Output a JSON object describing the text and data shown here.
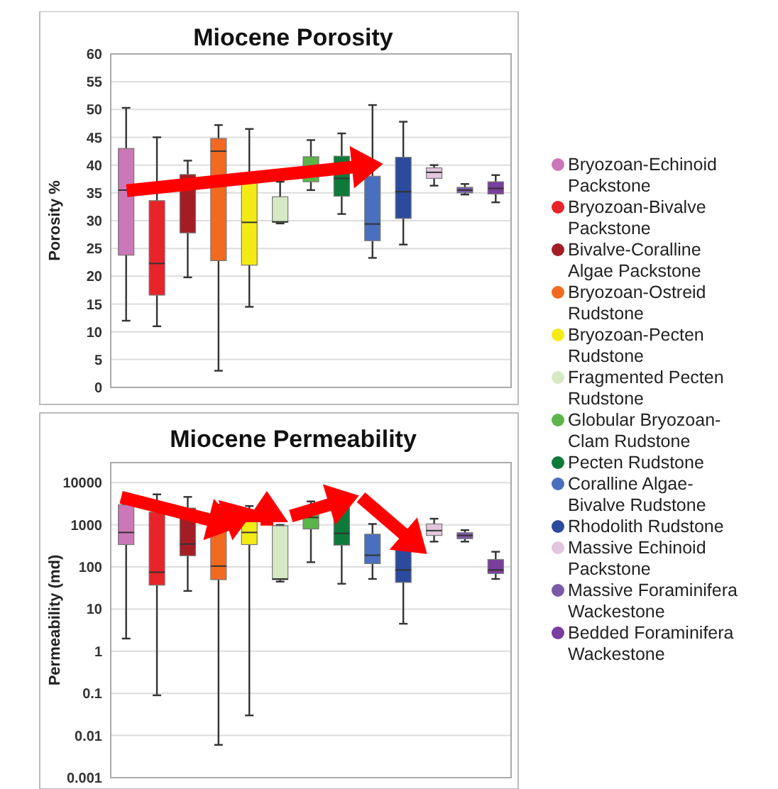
{
  "chart_data": [
    {
      "type": "box",
      "title": "Miocene Porosity",
      "ylabel": "Porosity %",
      "tick_labels": "y",
      "grid": "y",
      "legend": "right",
      "categories": [
        null,
        null,
        null,
        null,
        null,
        null,
        null,
        null,
        null,
        null,
        null,
        null,
        null
      ],
      "ylim": [
        0,
        60
      ],
      "yticks": [
        0,
        5,
        10,
        15,
        20,
        25,
        30,
        35,
        40,
        45,
        50,
        55,
        60
      ],
      "series": [
        {
          "name": "Bryozoan-Echinoid Packstone",
          "color": "#cc77b8",
          "boxes": [
            {
              "low": 12,
              "q1": 23.8,
              "median": 35.5,
              "q3": 43,
              "high": 50.3
            },
            null,
            null,
            null,
            null,
            null,
            null,
            null,
            null,
            null,
            null,
            null,
            null
          ]
        },
        {
          "name": "Bryozoan-Bivalve Packstone",
          "color": "#e8232a",
          "boxes": [
            null,
            {
              "low": 11,
              "q1": 16.6,
              "median": 22.3,
              "q3": 33.6,
              "high": 45
            },
            null,
            null,
            null,
            null,
            null,
            null,
            null,
            null,
            null,
            null,
            null
          ]
        },
        {
          "name": "Bivalve-Coralline Algae Packstone",
          "color": "#a51d24",
          "boxes": [
            null,
            null,
            {
              "low": 19.8,
              "q1": 27.8,
              "median": 36,
              "q3": 38.3,
              "high": 40.8
            },
            null,
            null,
            null,
            null,
            null,
            null,
            null,
            null,
            null,
            null
          ]
        },
        {
          "name": "Bryozoan-Ostreid Rudstone",
          "color": "#f26a21",
          "boxes": [
            null,
            null,
            null,
            {
              "low": 3,
              "q1": 22.8,
              "median": 42.5,
              "q3": 44.8,
              "high": 47.2
            },
            null,
            null,
            null,
            null,
            null,
            null,
            null,
            null,
            null
          ]
        },
        {
          "name": "Bryozoan-Pecten Rudstone",
          "color": "#f5eb14",
          "boxes": [
            null,
            null,
            null,
            null,
            {
              "low": 14.5,
              "q1": 22,
              "median": 29.7,
              "q3": 38,
              "high": 46.5
            },
            null,
            null,
            null,
            null,
            null,
            null,
            null,
            null
          ]
        },
        {
          "name": "Fragmented Pecten Rudstone",
          "color": "#d4e9c4",
          "boxes": [
            null,
            null,
            null,
            null,
            null,
            {
              "low": 29.5,
              "q1": 29.7,
              "median": 29.8,
              "q3": 34.3,
              "high": 37
            },
            null,
            null,
            null,
            null,
            null,
            null,
            null
          ]
        },
        {
          "name": "Globular Bryozoan-Clam Rudstone",
          "color": "#5bb548",
          "boxes": [
            null,
            null,
            null,
            null,
            null,
            null,
            {
              "low": 35.5,
              "q1": 37,
              "median": 39,
              "q3": 41.5,
              "high": 44.5
            },
            null,
            null,
            null,
            null,
            null,
            null
          ]
        },
        {
          "name": "Pecten Rudstone",
          "color": "#0e7a3a",
          "boxes": [
            null,
            null,
            null,
            null,
            null,
            null,
            null,
            {
              "low": 31.2,
              "q1": 34.4,
              "median": 37.6,
              "q3": 41.6,
              "high": 45.7
            },
            null,
            null,
            null,
            null,
            null
          ]
        },
        {
          "name": "Coralline Algae-Bivalve Rudstone",
          "color": "#4a6fbf",
          "boxes": [
            null,
            null,
            null,
            null,
            null,
            null,
            null,
            null,
            {
              "low": 23.3,
              "q1": 26.4,
              "median": 29.4,
              "q3": 38,
              "high": 50.8
            },
            null,
            null,
            null,
            null
          ]
        },
        {
          "name": "Rhodolith Rudstone",
          "color": "#2c4a9e",
          "boxes": [
            null,
            null,
            null,
            null,
            null,
            null,
            null,
            null,
            null,
            {
              "low": 25.7,
              "q1": 30.4,
              "median": 35.2,
              "q3": 41.4,
              "high": 47.8
            },
            null,
            null,
            null
          ]
        },
        {
          "name": "Massive Echinoid Packstone",
          "color": "#e2c6dd",
          "boxes": [
            null,
            null,
            null,
            null,
            null,
            null,
            null,
            null,
            null,
            null,
            {
              "low": 36.3,
              "q1": 37.6,
              "median": 38.7,
              "q3": 39.5,
              "high": 40
            },
            null,
            null
          ]
        },
        {
          "name": "Massive Foraminifera Wackestone",
          "color": "#7a5aa8",
          "boxes": [
            null,
            null,
            null,
            null,
            null,
            null,
            null,
            null,
            null,
            null,
            null,
            {
              "low": 34.7,
              "q1": 35,
              "median": 35.5,
              "q3": 36,
              "high": 36.6
            },
            null
          ]
        },
        {
          "name": "Bedded Foraminifera Wackestone",
          "color": "#7a3da0",
          "boxes": [
            null,
            null,
            null,
            null,
            null,
            null,
            null,
            null,
            null,
            null,
            null,
            null,
            {
              "low": 33.3,
              "q1": 34.8,
              "median": 35.8,
              "q3": 37,
              "high": 38.2
            }
          ]
        }
      ]
    },
    {
      "type": "box",
      "title": "Miocene Permeability",
      "ylabel": "Permeability (md)",
      "tick_labels": "y",
      "grid": "y",
      "log": true,
      "categories": [
        null,
        null,
        null,
        null,
        null,
        null,
        null,
        null,
        null,
        null,
        null,
        null,
        null
      ],
      "ylim": [
        0.001,
        30000
      ],
      "yticks": [
        0.001,
        0.01,
        0.1,
        1,
        10,
        100,
        1000,
        10000
      ],
      "series": [
        {
          "color": "#cc77b8",
          "boxes": [
            {
              "low": 2,
              "q1": 340,
              "median": 660,
              "q3": 3000,
              "high": 3100
            },
            null,
            null,
            null,
            null,
            null,
            null,
            null,
            null,
            null,
            null,
            null,
            null
          ]
        },
        {
          "color": "#e8232a",
          "boxes": [
            null,
            {
              "low": 0.09,
              "q1": 37,
              "median": 75,
              "q3": 2000,
              "high": 5300
            },
            null,
            null,
            null,
            null,
            null,
            null,
            null,
            null,
            null,
            null,
            null
          ]
        },
        {
          "color": "#a51d24",
          "boxes": [
            null,
            null,
            {
              "low": 27,
              "q1": 185,
              "median": 350,
              "q3": 2500,
              "high": 4600
            },
            null,
            null,
            null,
            null,
            null,
            null,
            null,
            null,
            null,
            null
          ]
        },
        {
          "color": "#f26a21",
          "boxes": [
            null,
            null,
            null,
            {
              "low": 0.006,
              "q1": 50,
              "median": 105,
              "q3": 1600,
              "high": 3000
            },
            null,
            null,
            null,
            null,
            null,
            null,
            null,
            null,
            null
          ]
        },
        {
          "color": "#f5eb14",
          "boxes": [
            null,
            null,
            null,
            null,
            {
              "low": 0.03,
              "q1": 340,
              "median": 660,
              "q3": 1700,
              "high": 2800
            },
            null,
            null,
            null,
            null,
            null,
            null,
            null,
            null
          ]
        },
        {
          "color": "#d4e9c4",
          "boxes": [
            null,
            null,
            null,
            null,
            null,
            {
              "low": 45,
              "q1": 50,
              "median": 52,
              "q3": 950,
              "high": 1000
            },
            null,
            null,
            null,
            null,
            null,
            null,
            null
          ]
        },
        {
          "color": "#5bb548",
          "boxes": [
            null,
            null,
            null,
            null,
            null,
            null,
            {
              "low": 130,
              "q1": 800,
              "median": 1500,
              "q3": 2000,
              "high": 3600
            },
            null,
            null,
            null,
            null,
            null,
            null
          ]
        },
        {
          "color": "#0e7a3a",
          "boxes": [
            null,
            null,
            null,
            null,
            null,
            null,
            null,
            {
              "low": 40,
              "q1": 330,
              "median": 630,
              "q3": 3500,
              "high": 5800
            },
            null,
            null,
            null,
            null,
            null
          ]
        },
        {
          "color": "#4a6fbf",
          "boxes": [
            null,
            null,
            null,
            null,
            null,
            null,
            null,
            null,
            {
              "low": 52,
              "q1": 120,
              "median": 190,
              "q3": 600,
              "high": 1050
            },
            null,
            null,
            null,
            null
          ]
        },
        {
          "color": "#2c4a9e",
          "boxes": [
            null,
            null,
            null,
            null,
            null,
            null,
            null,
            null,
            null,
            {
              "low": 4.5,
              "q1": 43,
              "median": 85,
              "q3": 300,
              "high": 600
            },
            null,
            null,
            null
          ]
        },
        {
          "color": "#e2c6dd",
          "boxes": [
            null,
            null,
            null,
            null,
            null,
            null,
            null,
            null,
            null,
            null,
            {
              "low": 400,
              "q1": 560,
              "median": 730,
              "q3": 1050,
              "high": 1400
            },
            null,
            null
          ]
        },
        {
          "color": "#7a5aa8",
          "boxes": [
            null,
            null,
            null,
            null,
            null,
            null,
            null,
            null,
            null,
            null,
            null,
            {
              "low": 400,
              "q1": 470,
              "median": 560,
              "q3": 650,
              "high": 750
            },
            null
          ]
        },
        {
          "color": "#7a3da0",
          "boxes": [
            null,
            null,
            null,
            null,
            null,
            null,
            null,
            null,
            null,
            null,
            null,
            null,
            {
              "low": 52,
              "q1": 70,
              "median": 85,
              "q3": 150,
              "high": 230
            }
          ]
        }
      ]
    }
  ]
}
